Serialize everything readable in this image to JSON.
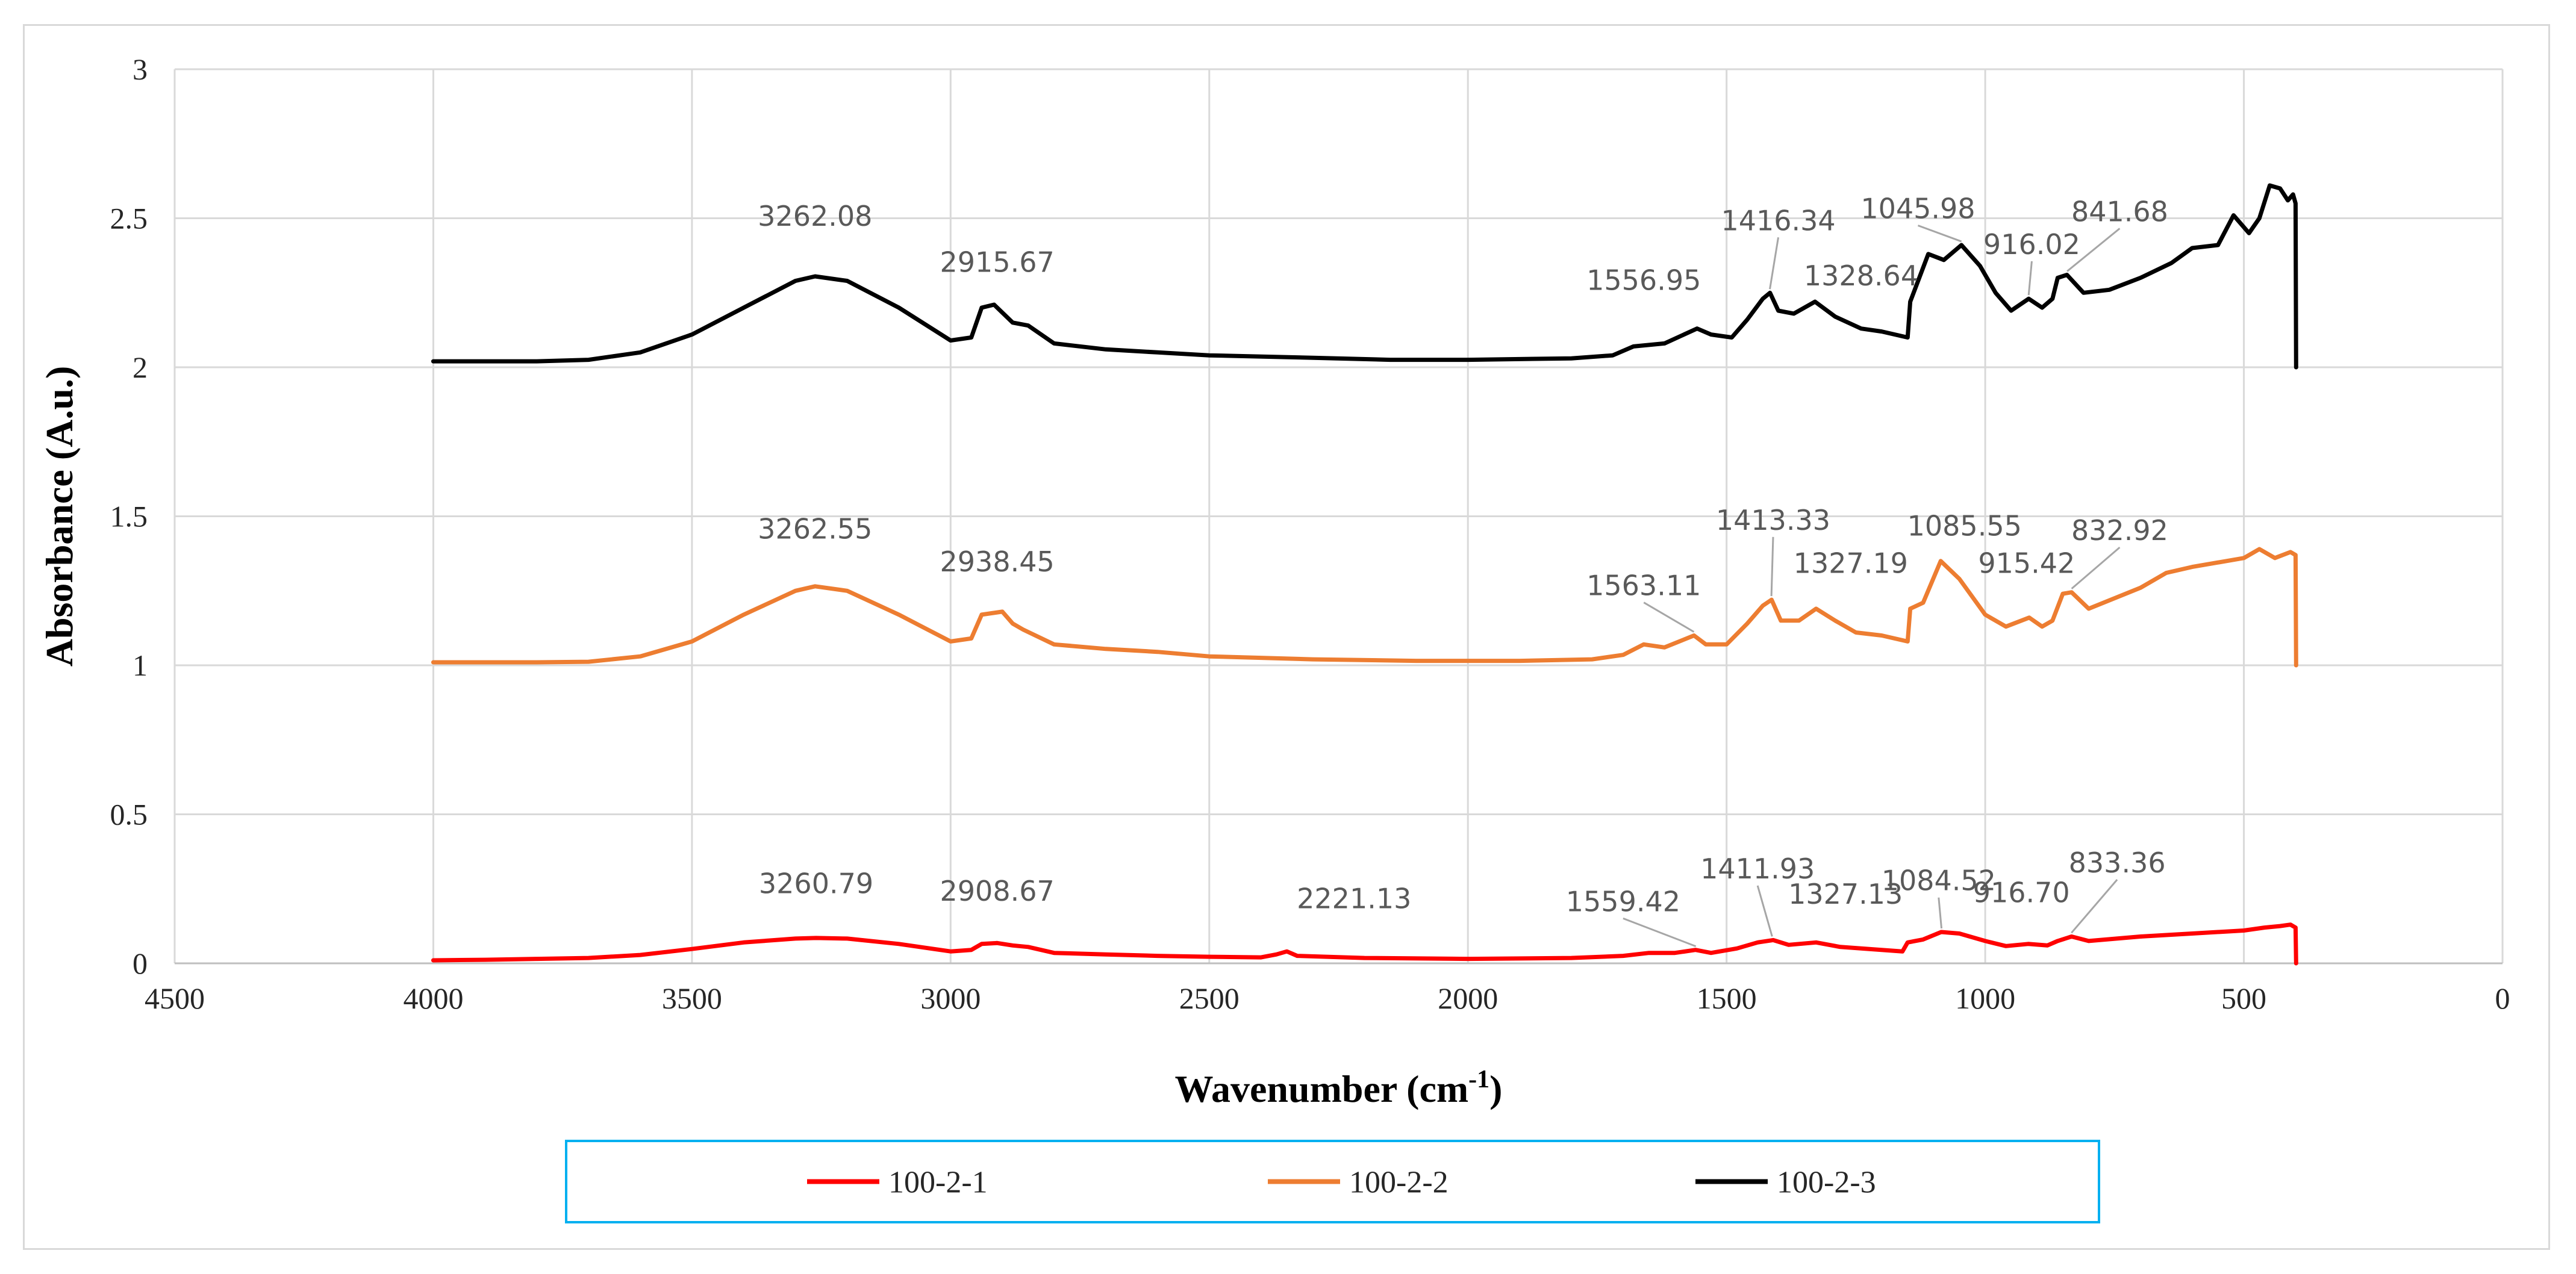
{
  "chart_data": {
    "type": "line",
    "title": "",
    "xlabel": "Wavenumber (cm",
    "xlabel_sup": "-1",
    "xlabel_end": ")",
    "ylabel": "Absorbance (A.u.)",
    "xlim": [
      4500,
      0
    ],
    "ylim": [
      0,
      3
    ],
    "x_ticks": [
      4500,
      4000,
      3500,
      3000,
      2500,
      2000,
      1500,
      1000,
      500,
      0
    ],
    "x_tick_labels": [
      "4500",
      "4000",
      "3500",
      "3000",
      "2500",
      "2000",
      "1500",
      "1000",
      "500",
      "0"
    ],
    "y_ticks": [
      0,
      0.5,
      1,
      1.5,
      2,
      2.5,
      3
    ],
    "y_tick_labels": [
      "0",
      "0.5",
      "1",
      "1.5",
      "2",
      "2.5",
      "3"
    ],
    "grid": true,
    "legend_position": "bottom",
    "series": [
      {
        "name": "100-2-1",
        "color": "#ff0000",
        "points": [
          [
            4000,
            0.01
          ],
          [
            3900,
            0.012
          ],
          [
            3800,
            0.015
          ],
          [
            3700,
            0.018
          ],
          [
            3600,
            0.028
          ],
          [
            3500,
            0.048
          ],
          [
            3400,
            0.07
          ],
          [
            3300,
            0.083
          ],
          [
            3260,
            0.085
          ],
          [
            3200,
            0.083
          ],
          [
            3100,
            0.065
          ],
          [
            3000,
            0.04
          ],
          [
            2960,
            0.045
          ],
          [
            2940,
            0.065
          ],
          [
            2910,
            0.068
          ],
          [
            2880,
            0.06
          ],
          [
            2850,
            0.055
          ],
          [
            2800,
            0.035
          ],
          [
            2700,
            0.03
          ],
          [
            2600,
            0.025
          ],
          [
            2500,
            0.022
          ],
          [
            2400,
            0.02
          ],
          [
            2370,
            0.03
          ],
          [
            2350,
            0.04
          ],
          [
            2330,
            0.025
          ],
          [
            2200,
            0.018
          ],
          [
            2000,
            0.015
          ],
          [
            1800,
            0.018
          ],
          [
            1700,
            0.025
          ],
          [
            1650,
            0.035
          ],
          [
            1600,
            0.035
          ],
          [
            1560,
            0.045
          ],
          [
            1530,
            0.035
          ],
          [
            1480,
            0.05
          ],
          [
            1440,
            0.07
          ],
          [
            1410,
            0.078
          ],
          [
            1380,
            0.062
          ],
          [
            1327,
            0.07
          ],
          [
            1280,
            0.055
          ],
          [
            1200,
            0.045
          ],
          [
            1160,
            0.04
          ],
          [
            1150,
            0.07
          ],
          [
            1120,
            0.08
          ],
          [
            1085,
            0.105
          ],
          [
            1050,
            0.1
          ],
          [
            1000,
            0.075
          ],
          [
            960,
            0.058
          ],
          [
            917,
            0.065
          ],
          [
            880,
            0.06
          ],
          [
            860,
            0.075
          ],
          [
            833,
            0.09
          ],
          [
            800,
            0.075
          ],
          [
            700,
            0.09
          ],
          [
            600,
            0.1
          ],
          [
            500,
            0.11
          ],
          [
            460,
            0.12
          ],
          [
            430,
            0.125
          ],
          [
            410,
            0.13
          ],
          [
            400,
            0.12
          ],
          [
            399,
            0.0
          ]
        ]
      },
      {
        "name": "100-2-2",
        "color": "#ed7d31",
        "points": [
          [
            4000,
            1.01
          ],
          [
            3900,
            1.01
          ],
          [
            3800,
            1.01
          ],
          [
            3700,
            1.012
          ],
          [
            3600,
            1.03
          ],
          [
            3500,
            1.08
          ],
          [
            3400,
            1.17
          ],
          [
            3300,
            1.25
          ],
          [
            3262,
            1.265
          ],
          [
            3200,
            1.25
          ],
          [
            3100,
            1.17
          ],
          [
            3000,
            1.08
          ],
          [
            2960,
            1.09
          ],
          [
            2940,
            1.17
          ],
          [
            2920,
            1.175
          ],
          [
            2900,
            1.18
          ],
          [
            2880,
            1.14
          ],
          [
            2860,
            1.12
          ],
          [
            2800,
            1.07
          ],
          [
            2700,
            1.055
          ],
          [
            2600,
            1.045
          ],
          [
            2500,
            1.03
          ],
          [
            2300,
            1.02
          ],
          [
            2100,
            1.015
          ],
          [
            1900,
            1.015
          ],
          [
            1760,
            1.02
          ],
          [
            1700,
            1.035
          ],
          [
            1660,
            1.07
          ],
          [
            1620,
            1.06
          ],
          [
            1563,
            1.1
          ],
          [
            1540,
            1.07
          ],
          [
            1500,
            1.07
          ],
          [
            1460,
            1.14
          ],
          [
            1430,
            1.2
          ],
          [
            1413,
            1.22
          ],
          [
            1395,
            1.15
          ],
          [
            1360,
            1.15
          ],
          [
            1327,
            1.19
          ],
          [
            1290,
            1.15
          ],
          [
            1250,
            1.11
          ],
          [
            1200,
            1.1
          ],
          [
            1150,
            1.08
          ],
          [
            1145,
            1.19
          ],
          [
            1120,
            1.21
          ],
          [
            1086,
            1.35
          ],
          [
            1050,
            1.29
          ],
          [
            1000,
            1.17
          ],
          [
            960,
            1.13
          ],
          [
            915,
            1.16
          ],
          [
            890,
            1.13
          ],
          [
            870,
            1.15
          ],
          [
            850,
            1.24
          ],
          [
            833,
            1.245
          ],
          [
            800,
            1.19
          ],
          [
            700,
            1.26
          ],
          [
            650,
            1.31
          ],
          [
            600,
            1.33
          ],
          [
            500,
            1.36
          ],
          [
            470,
            1.39
          ],
          [
            440,
            1.36
          ],
          [
            410,
            1.38
          ],
          [
            400,
            1.37
          ],
          [
            399,
            1.0
          ]
        ]
      },
      {
        "name": "100-2-3",
        "color": "#000000",
        "points": [
          [
            4000,
            2.02
          ],
          [
            3900,
            2.02
          ],
          [
            3800,
            2.02
          ],
          [
            3700,
            2.025
          ],
          [
            3600,
            2.05
          ],
          [
            3500,
            2.11
          ],
          [
            3400,
            2.2
          ],
          [
            3300,
            2.29
          ],
          [
            3262,
            2.305
          ],
          [
            3200,
            2.29
          ],
          [
            3100,
            2.2
          ],
          [
            3000,
            2.09
          ],
          [
            2960,
            2.1
          ],
          [
            2940,
            2.2
          ],
          [
            2916,
            2.21
          ],
          [
            2880,
            2.15
          ],
          [
            2850,
            2.14
          ],
          [
            2800,
            2.08
          ],
          [
            2700,
            2.06
          ],
          [
            2600,
            2.05
          ],
          [
            2500,
            2.04
          ],
          [
            2300,
            2.032
          ],
          [
            2150,
            2.025
          ],
          [
            2000,
            2.025
          ],
          [
            1800,
            2.03
          ],
          [
            1720,
            2.04
          ],
          [
            1680,
            2.07
          ],
          [
            1620,
            2.08
          ],
          [
            1557,
            2.13
          ],
          [
            1530,
            2.11
          ],
          [
            1490,
            2.1
          ],
          [
            1460,
            2.16
          ],
          [
            1430,
            2.23
          ],
          [
            1416,
            2.25
          ],
          [
            1400,
            2.19
          ],
          [
            1370,
            2.18
          ],
          [
            1329,
            2.22
          ],
          [
            1290,
            2.17
          ],
          [
            1240,
            2.13
          ],
          [
            1200,
            2.12
          ],
          [
            1150,
            2.1
          ],
          [
            1145,
            2.22
          ],
          [
            1110,
            2.38
          ],
          [
            1080,
            2.36
          ],
          [
            1046,
            2.41
          ],
          [
            1010,
            2.34
          ],
          [
            980,
            2.25
          ],
          [
            950,
            2.19
          ],
          [
            916,
            2.23
          ],
          [
            890,
            2.2
          ],
          [
            870,
            2.23
          ],
          [
            860,
            2.3
          ],
          [
            842,
            2.31
          ],
          [
            810,
            2.25
          ],
          [
            760,
            2.26
          ],
          [
            700,
            2.3
          ],
          [
            640,
            2.35
          ],
          [
            600,
            2.4
          ],
          [
            550,
            2.41
          ],
          [
            520,
            2.51
          ],
          [
            490,
            2.45
          ],
          [
            470,
            2.5
          ],
          [
            450,
            2.61
          ],
          [
            430,
            2.6
          ],
          [
            415,
            2.56
          ],
          [
            405,
            2.58
          ],
          [
            400,
            2.55
          ],
          [
            399,
            2.0
          ]
        ]
      }
    ],
    "annotations": [
      {
        "text": "3260.79",
        "series": "100-2-1",
        "x": 3260.79,
        "y": 0.085,
        "label_x": 3260,
        "label_y": 0.235
      },
      {
        "text": "2908.67",
        "series": "100-2-1",
        "x": 2908.67,
        "y": 0.068,
        "label_x": 2910,
        "label_y": 0.21
      },
      {
        "text": "2221.13",
        "series": "100-2-1",
        "x": 2221.13,
        "y": 0.02,
        "label_x": 2220,
        "label_y": 0.185
      },
      {
        "text": "1559.42",
        "series": "100-2-1",
        "x": 1559.42,
        "y": 0.045,
        "label_x": 1700,
        "label_y": 0.175,
        "leader": true
      },
      {
        "text": "1411.93",
        "series": "100-2-1",
        "x": 1411.93,
        "y": 0.078,
        "label_x": 1440,
        "label_y": 0.285,
        "leader": true
      },
      {
        "text": "1327.13",
        "series": "100-2-1",
        "x": 1327.13,
        "y": 0.07,
        "label_x": 1270,
        "label_y": 0.2
      },
      {
        "text": "1084.52",
        "series": "100-2-1",
        "x": 1084.52,
        "y": 0.105,
        "label_x": 1090,
        "label_y": 0.245,
        "leader": true
      },
      {
        "text": "916.70",
        "series": "100-2-1",
        "x": 916.7,
        "y": 0.065,
        "label_x": 930,
        "label_y": 0.205
      },
      {
        "text": "833.36",
        "series": "100-2-1",
        "x": 833.36,
        "y": 0.09,
        "label_x": 745,
        "label_y": 0.305,
        "leader": true
      },
      {
        "text": "3262.55",
        "series": "100-2-2",
        "x": 3262.55,
        "y": 1.265,
        "label_x": 3262,
        "label_y": 1.425
      },
      {
        "text": "2938.45",
        "series": "100-2-2",
        "x": 2938.45,
        "y": 1.17,
        "label_x": 2910,
        "label_y": 1.315
      },
      {
        "text": "1563.11",
        "series": "100-2-2",
        "x": 1563.11,
        "y": 1.1,
        "label_x": 1660,
        "label_y": 1.235,
        "leader": true
      },
      {
        "text": "1413.33",
        "series": "100-2-2",
        "x": 1413.33,
        "y": 1.22,
        "label_x": 1410,
        "label_y": 1.455,
        "leader": true
      },
      {
        "text": "1327.19",
        "series": "100-2-2",
        "x": 1327.19,
        "y": 1.19,
        "label_x": 1260,
        "label_y": 1.31
      },
      {
        "text": "1085.55",
        "series": "100-2-2",
        "x": 1085.55,
        "y": 1.35,
        "label_x": 1040,
        "label_y": 1.435
      },
      {
        "text": "832.92",
        "series": "100-2-2",
        "x": 832.92,
        "y": 1.245,
        "label_x": 740,
        "label_y": 1.42,
        "leader": true
      },
      {
        "text": "915.42",
        "series": "100-2-2",
        "x": 915.42,
        "y": 1.16,
        "label_x": 920,
        "label_y": 1.31
      },
      {
        "text": "3262.08",
        "series": "100-2-3",
        "x": 3262.08,
        "y": 2.305,
        "label_x": 3262,
        "label_y": 2.475
      },
      {
        "text": "2915.67",
        "series": "100-2-3",
        "x": 2915.67,
        "y": 2.21,
        "label_x": 2910,
        "label_y": 2.32
      },
      {
        "text": "1556.95",
        "series": "100-2-3",
        "x": 1556.95,
        "y": 2.13,
        "label_x": 1660,
        "label_y": 2.26
      },
      {
        "text": "1416.34",
        "series": "100-2-3",
        "x": 1416.34,
        "y": 2.25,
        "label_x": 1400,
        "label_y": 2.46,
        "leader": true
      },
      {
        "text": "1328.64",
        "series": "100-2-3",
        "x": 1328.64,
        "y": 2.22,
        "label_x": 1240,
        "label_y": 2.275
      },
      {
        "text": "1045.98",
        "series": "100-2-3",
        "x": 1045.98,
        "y": 2.41,
        "label_x": 1130,
        "label_y": 2.5,
        "leader": true
      },
      {
        "text": "916.02",
        "series": "100-2-3",
        "x": 916.02,
        "y": 2.23,
        "label_x": 910,
        "label_y": 2.38,
        "leader": true
      },
      {
        "text": "841.68",
        "series": "100-2-3",
        "x": 841.68,
        "y": 2.31,
        "label_x": 740,
        "label_y": 2.49,
        "leader": true
      }
    ]
  },
  "legend": {
    "border_color": "#00b0f0",
    "items": [
      {
        "label": "100-2-1",
        "color": "#ff0000"
      },
      {
        "label": "100-2-2",
        "color": "#ed7d31"
      },
      {
        "label": "100-2-3",
        "color": "#000000"
      }
    ]
  }
}
